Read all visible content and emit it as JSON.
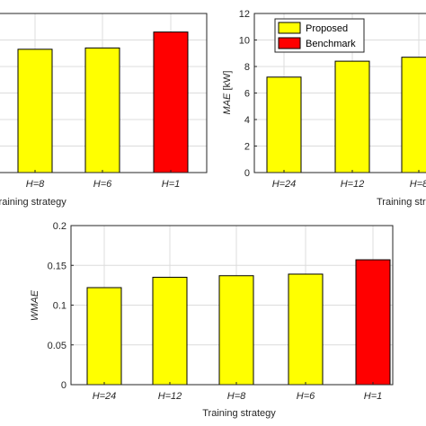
{
  "chart_data": [
    {
      "id": "top-left",
      "type": "bar",
      "categories": [
        "H=8",
        "H=6",
        "H=1"
      ],
      "values": [
        9.3,
        9.4,
        10.6
      ],
      "bar_colors": [
        "#ffff00",
        "#ffff00",
        "#ff0000"
      ],
      "xlabel": "Training strategy",
      "ylabel": "",
      "yticks": [],
      "ylim": [
        0,
        12
      ],
      "grid": true
    },
    {
      "id": "top-right",
      "type": "bar",
      "categories": [
        "H=24",
        "H=12",
        "H=8"
      ],
      "values": [
        7.2,
        8.4,
        8.7
      ],
      "bar_colors": [
        "#ffff00",
        "#ffff00",
        "#ffff00"
      ],
      "xlabel": "Training strategy",
      "ylabel_italic": "MAE",
      "ylabel_rest": " [kW]",
      "yticks": [
        "0",
        "2",
        "4",
        "6",
        "8",
        "10",
        "12"
      ],
      "ylim": [
        0,
        12
      ],
      "grid": true,
      "legend": [
        {
          "label": "Proposed",
          "color": "#ffff00"
        },
        {
          "label": "Benchmark",
          "color": "#ff0000"
        }
      ],
      "legend_position": "top-left"
    },
    {
      "id": "bottom",
      "type": "bar",
      "categories": [
        "H=24",
        "H=12",
        "H=8",
        "H=6",
        "H=1"
      ],
      "values": [
        0.122,
        0.135,
        0.137,
        0.139,
        0.157
      ],
      "bar_colors": [
        "#ffff00",
        "#ffff00",
        "#ffff00",
        "#ffff00",
        "#ff0000"
      ],
      "xlabel": "Training strategy",
      "ylabel_italic": "WMAE",
      "ylabel_rest": "",
      "yticks": [
        "0",
        "0.05",
        "0.1",
        "0.15",
        "0.2"
      ],
      "ylim": [
        0,
        0.2
      ],
      "grid": true
    }
  ]
}
